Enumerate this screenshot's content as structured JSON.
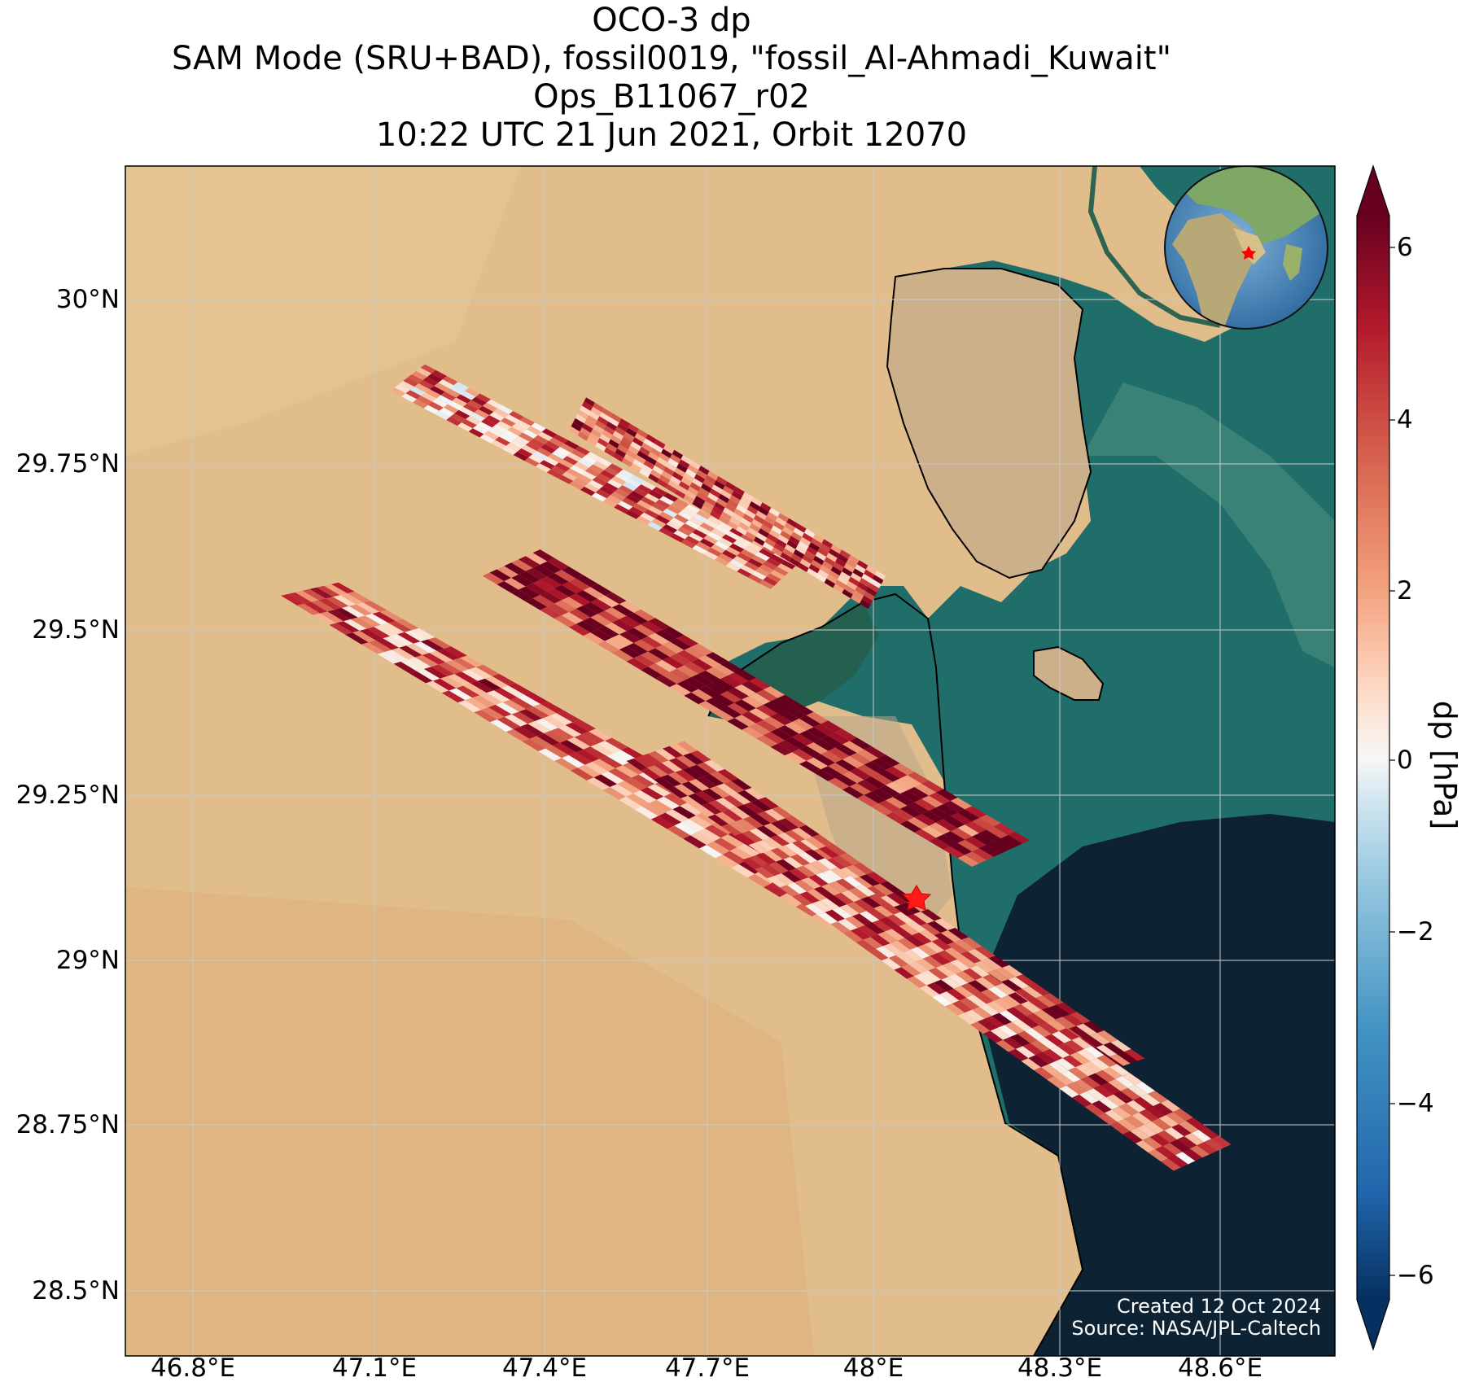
{
  "title_lines": [
    "OCO-3 dp",
    "SAM Mode (SRU+BAD), fossil0019, \"fossil_Al-Ahmadi_Kuwait\"",
    "Ops_B11067_r02",
    "10:22 UTC 21 Jun 2021, Orbit 12070"
  ],
  "x_ticks": [
    "46.8°E",
    "47.1°E",
    "47.4°E",
    "47.7°E",
    "48°E",
    "48.3°E",
    "48.6°E"
  ],
  "y_ticks": [
    "30°N",
    "29.75°N",
    "29.5°N",
    "29.25°N",
    "29°N",
    "28.75°N",
    "28.5°N"
  ],
  "colorbar": {
    "label": "dp [hPa]",
    "ticks": [
      "6",
      "4",
      "2",
      "0",
      "−2",
      "−4",
      "−6"
    ],
    "range": [
      -6,
      6
    ],
    "colormap": "RdBu_r",
    "extend": "both"
  },
  "credit": {
    "created": "Created 12 Oct 2024",
    "source": "Source: NASA/JPL-Caltech"
  },
  "map": {
    "lon_range": [
      46.68,
      48.78
    ],
    "lat_range": [
      28.4,
      30.2
    ],
    "target_marker": {
      "lon": 48.08,
      "lat": 29.1,
      "color": "#ff0000",
      "symbol": "star"
    },
    "inset": "globe locator with red star",
    "colors": {
      "desert": "#e2bd8c",
      "sea": "#1f6e6a",
      "deep_sea": "#0d2233"
    }
  },
  "chart_data": {
    "type": "heatmap",
    "variable": "dp",
    "units": "hPa",
    "vmin": -6,
    "vmax": 6,
    "swaths": [
      {
        "corners_lonlat": [
          [
            47.14,
            29.86
          ],
          [
            47.2,
            29.9
          ],
          [
            47.85,
            29.6
          ],
          [
            47.8,
            29.56
          ]
        ],
        "mean_dp": 2.5
      },
      {
        "corners_lonlat": [
          [
            47.45,
            29.8
          ],
          [
            47.48,
            29.85
          ],
          [
            48.0,
            29.58
          ],
          [
            47.97,
            29.53
          ]
        ],
        "mean_dp": 3.5
      },
      {
        "corners_lonlat": [
          [
            46.95,
            29.55
          ],
          [
            47.05,
            29.57
          ],
          [
            48.0,
            29.1
          ],
          [
            47.9,
            29.05
          ]
        ],
        "mean_dp": 3.0
      },
      {
        "corners_lonlat": [
          [
            47.3,
            29.58
          ],
          [
            47.4,
            29.62
          ],
          [
            48.25,
            29.18
          ],
          [
            48.15,
            29.14
          ]
        ],
        "mean_dp": 5.0
      },
      {
        "corners_lonlat": [
          [
            47.55,
            29.3
          ],
          [
            47.65,
            29.33
          ],
          [
            48.45,
            28.85
          ],
          [
            48.35,
            28.82
          ]
        ],
        "mean_dp": 4.0
      },
      {
        "corners_lonlat": [
          [
            47.75,
            29.15
          ],
          [
            47.85,
            29.18
          ],
          [
            48.6,
            28.72
          ],
          [
            48.5,
            28.68
          ]
        ],
        "mean_dp": 3.0
      }
    ]
  }
}
